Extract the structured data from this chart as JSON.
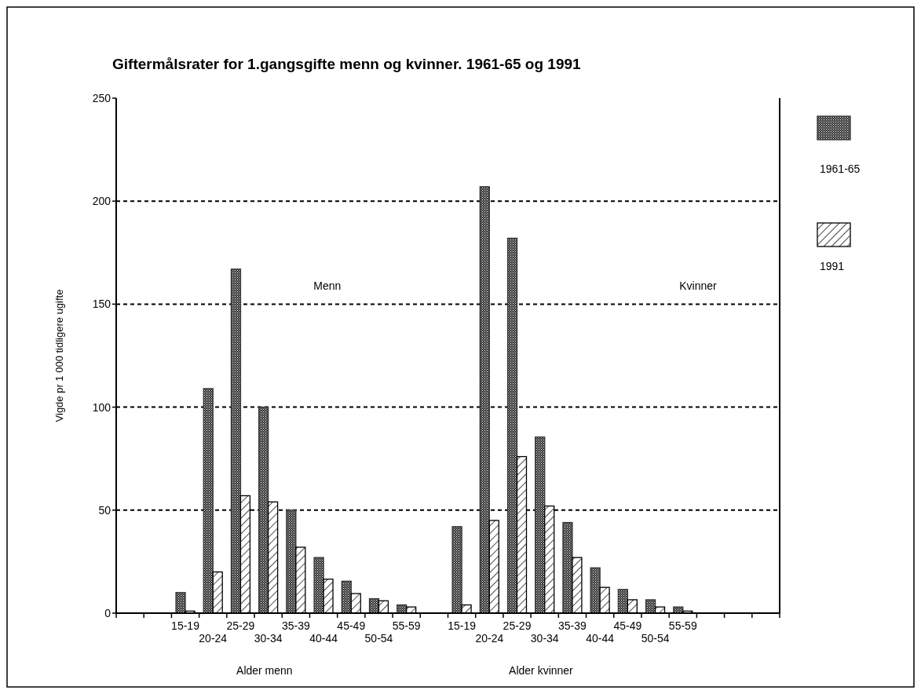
{
  "chart_data": {
    "type": "bar",
    "title": "Giftermålsrater for 1.gangsgifte menn og kvinner. 1961-65 og 1991",
    "ylabel": "Vigde pr 1 000 tidligere ugifte",
    "categories": [
      null,
      null,
      "15-19",
      "20-24",
      "25-29",
      "30-34",
      "35-39",
      "40-44",
      "45-49",
      "50-54",
      "55-59",
      null,
      "15-19",
      "20-24",
      "25-29",
      "30-34",
      "35-39",
      "40-44",
      "45-49",
      "50-54",
      "55-59",
      null,
      null,
      null
    ],
    "series": [
      {
        "name": "1961-65",
        "color": "#333333",
        "values": [
          null,
          null,
          10,
          109,
          167,
          100,
          50,
          27,
          15.5,
          7,
          4,
          null,
          42,
          207,
          182,
          85.5,
          44,
          22,
          11.5,
          6.5,
          3,
          null,
          null,
          null
        ]
      },
      {
        "name": "1991",
        "color": "#000000",
        "values": [
          null,
          null,
          1,
          20,
          57,
          54,
          32,
          16.5,
          9.5,
          6,
          3,
          null,
          4,
          45,
          76,
          52,
          27,
          12.5,
          6.5,
          3,
          1,
          null,
          null,
          null
        ]
      }
    ],
    "ylim": [
      0,
      250
    ],
    "yticks": [
      0,
      50,
      100,
      150,
      200,
      250
    ],
    "grid": "y",
    "legend": "top right",
    "annotations": [
      "Menn",
      "Kvinner",
      "Alder menn",
      "Alder kvinner"
    ]
  }
}
